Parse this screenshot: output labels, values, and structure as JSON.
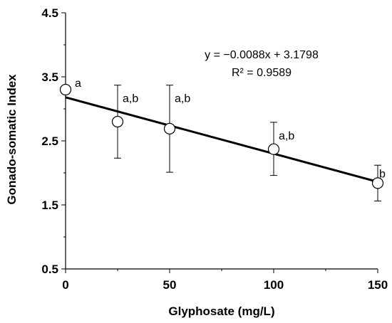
{
  "chart_data": {
    "type": "scatter",
    "xlabel": "Glyphosate (mg/L)",
    "ylabel": "Gonado-somatic Index",
    "xlim": [
      0,
      150
    ],
    "ylim": [
      0.5,
      4.5
    ],
    "x_ticks": [
      "0",
      "50",
      "100",
      "150"
    ],
    "y_ticks": [
      "0.5",
      "1.5",
      "2.5",
      "3.5",
      "4.5"
    ],
    "points": [
      {
        "x": 0,
        "y": 3.3,
        "err_low": 3.3,
        "err_high": 3.3,
        "label": "a"
      },
      {
        "x": 25,
        "y": 2.8,
        "err_low": 2.23,
        "err_high": 3.37,
        "label": "a,b"
      },
      {
        "x": 50,
        "y": 2.69,
        "err_low": 2.01,
        "err_high": 3.37,
        "label": "a,b"
      },
      {
        "x": 100,
        "y": 2.37,
        "err_low": 1.96,
        "err_high": 2.79,
        "label": "a,b"
      },
      {
        "x": 150,
        "y": 1.84,
        "err_low": 1.56,
        "err_high": 2.12,
        "label": "b"
      }
    ],
    "trendline": {
      "slope": -0.0088,
      "intercept": 3.1798,
      "equation": "y = −0.0088x + 3.1798",
      "r_squared": "R² = 0.9589"
    },
    "legend": "none",
    "grid": false
  }
}
